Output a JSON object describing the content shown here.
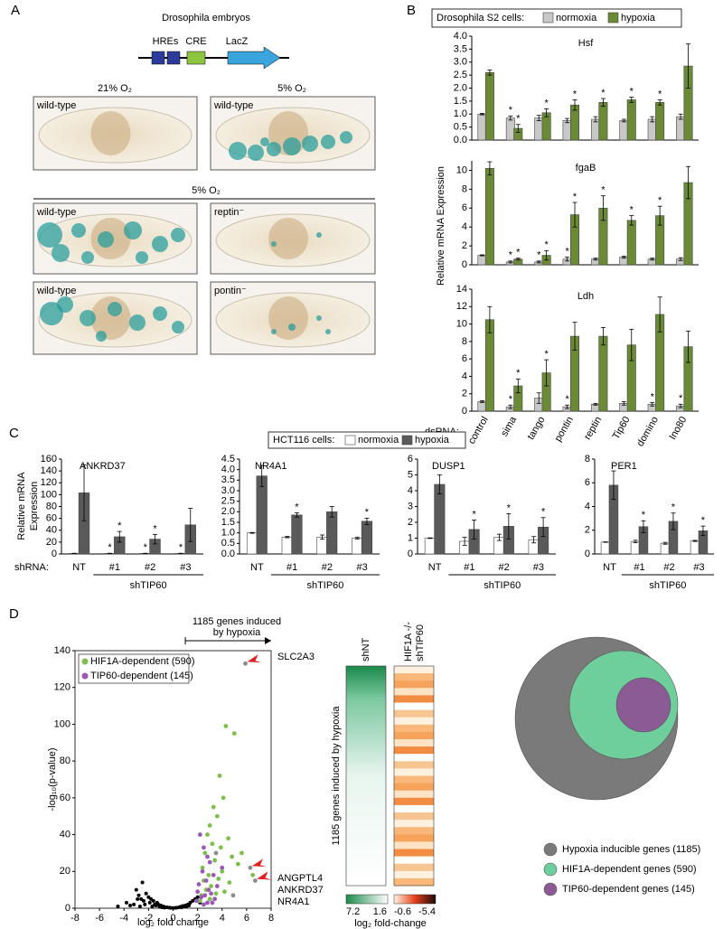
{
  "panel_labels": [
    "A",
    "B",
    "C",
    "D"
  ],
  "panel_a": {
    "title": "Drosophila embryos",
    "construct": [
      "HREs",
      "CRE",
      "LacZ"
    ],
    "conditions_top": [
      "21% O₂",
      "5% O₂"
    ],
    "condition_bottom": "5% O₂",
    "images": [
      "wild-type",
      "wild-type",
      "wild-type",
      "reptin⁻",
      "wild-type",
      "pontin⁻"
    ]
  },
  "chart_data": [
    {
      "type": "bar",
      "title": "Hsf",
      "legend_title": "Drosophila S2 cells:",
      "ylim": [
        0,
        4.0
      ],
      "yticks": [
        {
          "value": 0,
          "label": "0.0"
        },
        {
          "value": 0.5,
          "label": "0.5"
        },
        {
          "value": 1,
          "label": "1.0"
        },
        {
          "value": 1.5,
          "label": "1.5"
        },
        {
          "value": 2,
          "label": "2.0"
        },
        {
          "value": 2.5,
          "label": "2.5"
        },
        {
          "value": 3,
          "label": "3.0"
        },
        {
          "value": 3.5,
          "label": "3.5"
        },
        {
          "value": 4,
          "label": "4.0"
        }
      ],
      "series": [
        {
          "name": "normoxia",
          "color": "#c8c8c8",
          "values": [
            1.0,
            0.85,
            0.85,
            0.75,
            0.8,
            0.75,
            0.8,
            0.9
          ],
          "errors": [
            0.03,
            0.08,
            0.1,
            0.08,
            0.1,
            0.05,
            0.1,
            0.1
          ],
          "stars": [
            null,
            "*",
            null,
            null,
            null,
            null,
            null,
            null
          ]
        },
        {
          "name": "hypoxia",
          "color": "#6b8a35",
          "values": [
            2.6,
            0.45,
            1.05,
            1.35,
            1.45,
            1.55,
            1.45,
            2.85
          ],
          "errors": [
            0.1,
            0.15,
            0.15,
            0.2,
            0.15,
            0.1,
            0.1,
            0.85
          ],
          "stars": [
            null,
            "*",
            "*",
            "*",
            "*",
            "*",
            "*",
            null
          ]
        }
      ]
    },
    {
      "type": "bar",
      "title": "fgaB",
      "ylabel": "Relative mRNA Expression",
      "ylim": [
        0,
        11
      ],
      "yticks": [
        0,
        2,
        4,
        6,
        8,
        10
      ],
      "series": [
        {
          "color": "#c8c8c8",
          "values": [
            1,
            0.3,
            0.3,
            0.6,
            0.6,
            0.8,
            0.6,
            0.6
          ],
          "errors": [
            0.05,
            0.1,
            0.1,
            0.2,
            0.1,
            0.1,
            0.1,
            0.15
          ],
          "stars": [
            null,
            "*",
            "*",
            "*",
            null,
            null,
            null,
            null
          ]
        },
        {
          "color": "#6b8a35",
          "values": [
            10.2,
            0.6,
            1.0,
            5.3,
            6.0,
            4.7,
            5.2,
            8.7
          ],
          "errors": [
            0.7,
            0.1,
            0.5,
            1.3,
            1.3,
            0.5,
            1.0,
            1.7
          ],
          "stars": [
            null,
            "*",
            "*",
            "*",
            "*",
            "*",
            "*",
            null
          ]
        }
      ]
    },
    {
      "type": "bar",
      "title": "Ldh",
      "xlabel": "dsRNA:",
      "categories": [
        "control",
        "sima",
        "tango",
        "pontin",
        "reptin",
        "Tip60",
        "domino",
        "Ino80"
      ],
      "ylim": [
        0,
        14
      ],
      "yticks": [
        0,
        2,
        4,
        6,
        8,
        10,
        12,
        14
      ],
      "series": [
        {
          "color": "#c8c8c8",
          "values": [
            1.1,
            0.5,
            1.5,
            0.5,
            0.8,
            0.9,
            0.8,
            0.6
          ],
          "errors": [
            0.1,
            0.2,
            0.6,
            0.2,
            0.1,
            0.2,
            0.2,
            0.2
          ],
          "stars": [
            null,
            "*",
            null,
            "*",
            null,
            null,
            "*",
            "*"
          ]
        },
        {
          "color": "#6b8a35",
          "values": [
            10.5,
            2.9,
            4.4,
            8.6,
            8.6,
            7.6,
            11.1,
            7.4
          ],
          "errors": [
            1.5,
            0.8,
            1.5,
            1.6,
            1.0,
            1.8,
            2.0,
            1.8
          ],
          "stars": [
            null,
            "*",
            "*",
            null,
            null,
            null,
            null,
            null
          ]
        }
      ]
    },
    {
      "type": "bar",
      "title": "ANKRD37",
      "legend_title": "HCT116 cells:",
      "ylabel": [
        "Relative mRNA",
        "Expression"
      ],
      "xlabel": "shRNA:",
      "group_label": "shTIP60",
      "categories": [
        "NT",
        "#1",
        "#2",
        "#3"
      ],
      "ylim": [
        0,
        160
      ],
      "yticks": [
        0,
        20,
        40,
        60,
        80,
        100,
        120,
        140,
        160
      ],
      "series": [
        {
          "name": "normoxia",
          "color": "#ffffff",
          "values": [
            1,
            1,
            1,
            1
          ],
          "errors": [
            0.2,
            0.2,
            0.2,
            0.2
          ],
          "stars": [
            null,
            "*",
            "*",
            "*"
          ]
        },
        {
          "name": "hypoxia",
          "color": "#5a5a5a",
          "values": [
            103,
            29,
            25,
            49
          ],
          "errors": [
            47,
            9,
            8,
            28
          ],
          "stars": [
            null,
            "*",
            "*",
            null
          ]
        }
      ]
    },
    {
      "type": "bar",
      "title": "NR4A1",
      "group_label": "shTIP60",
      "categories": [
        "NT",
        "#1",
        "#2",
        "#3"
      ],
      "ylim": [
        0,
        4.5
      ],
      "yticks": [
        {
          "value": 0,
          "label": "0.0"
        },
        {
          "value": 0.5,
          "label": "0.5"
        },
        {
          "value": 1,
          "label": "1.0"
        },
        {
          "value": 1.5,
          "label": "1.5"
        },
        {
          "value": 2,
          "label": "2.0"
        },
        {
          "value": 2.5,
          "label": "2.5"
        },
        {
          "value": 3,
          "label": "3.0"
        },
        {
          "value": 3.5,
          "label": "3.5"
        },
        {
          "value": 4,
          "label": "4.0"
        },
        {
          "value": 4.5,
          "label": "4.5"
        }
      ],
      "series": [
        {
          "color": "#ffffff",
          "values": [
            1.0,
            0.8,
            0.8,
            0.75
          ],
          "errors": [
            0.02,
            0.03,
            0.1,
            0.04
          ],
          "stars": [
            null,
            null,
            null,
            null
          ]
        },
        {
          "color": "#5a5a5a",
          "values": [
            3.7,
            1.85,
            2.0,
            1.55
          ],
          "errors": [
            0.5,
            0.1,
            0.25,
            0.15
          ],
          "stars": [
            null,
            "*",
            null,
            "*"
          ]
        }
      ]
    },
    {
      "type": "bar",
      "title": "DUSP1",
      "group_label": "shTIP60",
      "categories": [
        "NT",
        "#1",
        "#2",
        "#3"
      ],
      "ylim": [
        0,
        6
      ],
      "yticks": [
        0,
        1,
        2,
        3,
        4,
        5,
        6
      ],
      "series": [
        {
          "color": "#ffffff",
          "values": [
            1,
            0.8,
            1.05,
            0.9
          ],
          "errors": [
            0.02,
            0.25,
            0.2,
            0.2
          ],
          "stars": [
            null,
            null,
            null,
            null
          ]
        },
        {
          "color": "#5a5a5a",
          "values": [
            4.4,
            1.55,
            1.75,
            1.7
          ],
          "errors": [
            0.6,
            0.6,
            0.8,
            0.6
          ],
          "stars": [
            null,
            "*",
            "*",
            "*"
          ]
        }
      ]
    },
    {
      "type": "bar",
      "title": "PER1",
      "group_label": "shTIP60",
      "categories": [
        "NT",
        "#1",
        "#2",
        "#3"
      ],
      "ylim": [
        0,
        8
      ],
      "yticks": [
        0,
        2,
        4,
        6,
        8
      ],
      "series": [
        {
          "color": "#ffffff",
          "values": [
            1,
            1.05,
            0.9,
            1.1
          ],
          "errors": [
            0.02,
            0.1,
            0.08,
            0.05
          ],
          "stars": [
            null,
            null,
            null,
            null
          ]
        },
        {
          "color": "#5a5a5a",
          "values": [
            5.8,
            2.3,
            2.75,
            1.95
          ],
          "errors": [
            1.2,
            0.5,
            0.7,
            0.4
          ],
          "stars": [
            null,
            "*",
            "*",
            "*"
          ]
        }
      ]
    },
    {
      "type": "scatter",
      "header": [
        "1185 genes induced",
        "by hypoxia"
      ],
      "xlabel": "log₂ fold change",
      "ylabel": "-log₁₀(p-value)",
      "xlim": [
        -8,
        8
      ],
      "xticks": [
        -8,
        -6,
        -4,
        -2,
        0,
        2,
        4,
        6,
        8
      ],
      "ylim": [
        0,
        140
      ],
      "yticks": [
        0,
        20,
        40,
        60,
        80,
        100,
        120,
        140
      ],
      "series": [
        {
          "color": "#000000",
          "x": [
            -4.5,
            -3.8,
            -3.2,
            -3,
            -2.8,
            -2.6,
            -2.5,
            -2.4,
            -2.2,
            -2,
            -1.9,
            -1.8,
            -1.6,
            -1.5,
            -1.3,
            -1.2,
            -1,
            -0.8,
            -0.6,
            -0.5,
            -0.3,
            -0.2,
            0,
            0.2,
            0.3,
            0.5,
            0.6,
            0.8,
            1,
            1.2,
            1.4,
            1.6,
            1.8,
            -2.7,
            -2.3,
            -1.7,
            -1.4,
            -1.1,
            -0.9,
            -0.7,
            0.7,
            0.9,
            1.1,
            1.3,
            -3.5,
            -2.9,
            2.0,
            2.2
          ],
          "values": [
            1,
            3,
            2,
            10,
            7,
            5,
            14,
            4,
            8,
            6,
            3,
            5,
            4,
            2,
            3,
            2,
            1.5,
            1,
            0.5,
            0.5,
            0.3,
            0.2,
            0.1,
            0.2,
            0.3,
            0.5,
            0.8,
            1.2,
            1.5,
            2,
            3,
            4,
            5,
            1,
            2,
            1,
            1.5,
            0.8,
            0.5,
            0.3,
            0.5,
            1,
            1,
            1.5,
            1.5,
            5,
            6,
            3
          ]
        },
        {
          "color": "#8c8c8c",
          "x": [
            5.9,
            6.7,
            4.9,
            3.5,
            6.3
          ],
          "values": [
            133,
            15,
            7,
            30,
            22
          ]
        },
        {
          "name": "HIF1A-dependent (590)",
          "color": "#7cc04b",
          "x": [
            4.3,
            5.0,
            3.8,
            4.1,
            3.3,
            3.0,
            3.6,
            2.8,
            4.5,
            3.9,
            2.6,
            3.2,
            4.8,
            5.3,
            2.4,
            3.4,
            4.0,
            2.9,
            3.7,
            2.5,
            4.6,
            3.1,
            6.5,
            5.6,
            2.7,
            3.5,
            4.2,
            2.3,
            3.0,
            2.2
          ],
          "values": [
            99,
            95,
            72,
            60,
            55,
            45,
            50,
            40,
            38,
            33,
            30,
            35,
            28,
            24,
            22,
            26,
            20,
            18,
            16,
            15,
            14,
            12,
            18,
            30,
            10,
            8,
            9,
            7,
            5,
            4
          ]
        },
        {
          "name": "TIP60-dependent (145)",
          "color": "#9b59b6",
          "x": [
            2.2,
            2.5,
            2.8,
            3.0,
            2.4,
            3.3,
            2.7,
            2.1,
            3.6,
            2.9,
            2.0,
            3.1,
            2.6,
            2.3,
            3.4,
            1.9,
            2.8,
            3.2,
            2.5,
            4.0
          ],
          "values": [
            40,
            33,
            28,
            25,
            20,
            18,
            15,
            13,
            12,
            10,
            9,
            8,
            7,
            6,
            5,
            4,
            3,
            3,
            2,
            22
          ]
        }
      ],
      "annotations": [
        {
          "text": "SLC2A3",
          "x": 5.9,
          "y": 133
        },
        {
          "text": "ANGPTL4",
          "x": 6.3,
          "y": 22
        },
        {
          "text": "ANKRD37",
          "x": 6.7,
          "y": 15
        },
        {
          "text": "NR4A1",
          "x": 6.7,
          "y": 15
        }
      ]
    }
  ],
  "heatmap": {
    "columns": [
      [
        "shNT"
      ],
      [
        "HIF1A -/-",
        "shTIP60"
      ]
    ],
    "ylabel": "1185 genes induced by hypoxia",
    "scale_ticks": [
      7.2,
      1.6,
      -0.6,
      -5.4
    ],
    "scale_label": "log₂ fold-change"
  },
  "venn": {
    "sets": [
      {
        "label": "Hypoxia inducible genes (1185)",
        "color": "#7a7a7a"
      },
      {
        "label": "HIF1A-dependent genes (590)",
        "color": "#6fcf9c"
      },
      {
        "label": "TIP60-dependent genes (145)",
        "color": "#8a5b94"
      }
    ]
  }
}
